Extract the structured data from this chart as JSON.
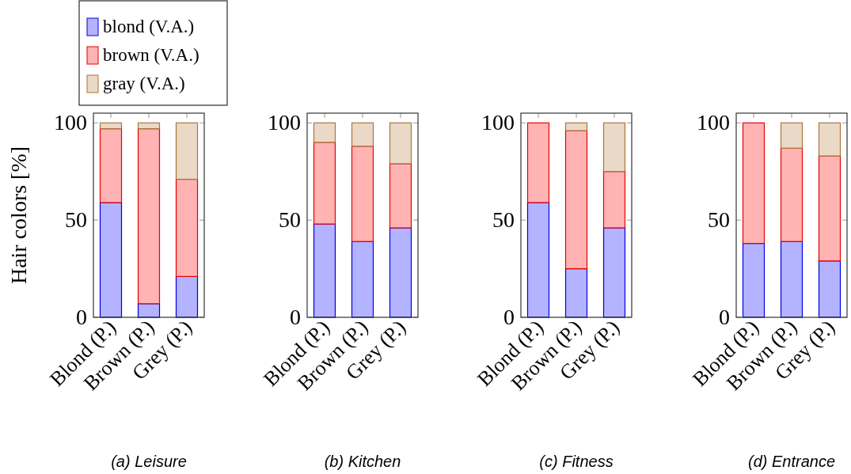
{
  "chart_data": [
    {
      "type": "bar",
      "stacked": true,
      "title": "(a) Leisure",
      "ylabel": "Hair colors [%]",
      "legend": "top left",
      "categories": [
        "Blond (P.)",
        "Brown (P.)",
        "Grey (P.)"
      ],
      "ylim": [
        0,
        105
      ],
      "yticks": [
        0,
        50,
        100
      ],
      "series": [
        {
          "name": "blond (V.A.)",
          "color": "#b3b3ff",
          "values": [
            59,
            7,
            21
          ]
        },
        {
          "name": "brown (V.A.)",
          "color": "#ffb3b3",
          "values": [
            38,
            90,
            50
          ]
        },
        {
          "name": "gray (V.A.)",
          "color": "#ead9c6",
          "values": [
            3,
            3,
            29
          ]
        }
      ]
    },
    {
      "type": "bar",
      "stacked": true,
      "title": "(b) Kitchen",
      "categories": [
        "Blond (P.)",
        "Brown (P.)",
        "Grey (P.)"
      ],
      "ylim": [
        0,
        105
      ],
      "yticks": [
        0,
        50,
        100
      ],
      "series": [
        {
          "color": "#b3b3ff",
          "values": [
            48,
            39,
            46
          ]
        },
        {
          "color": "#ffb3b3",
          "values": [
            42,
            49,
            33
          ]
        },
        {
          "color": "#ead9c6",
          "values": [
            10,
            12,
            21
          ]
        }
      ]
    },
    {
      "type": "bar",
      "stacked": true,
      "title": "(c) Fitness",
      "categories": [
        "Blond (P.)",
        "Brown (P.)",
        "Grey (P.)"
      ],
      "ylim": [
        0,
        105
      ],
      "yticks": [
        0,
        50,
        100
      ],
      "series": [
        {
          "color": "#b3b3ff",
          "values": [
            59,
            25,
            46
          ]
        },
        {
          "color": "#ffb3b3",
          "values": [
            41,
            71,
            29
          ]
        },
        {
          "color": "#ead9c6",
          "values": [
            0,
            4,
            25
          ]
        }
      ]
    },
    {
      "type": "bar",
      "stacked": true,
      "title": "(d) Entrance",
      "categories": [
        "Blond (P.)",
        "Brown (P.)",
        "Grey (P.)"
      ],
      "ylim": [
        0,
        105
      ],
      "yticks": [
        0,
        50,
        100
      ],
      "series": [
        {
          "color": "#b3b3ff",
          "values": [
            38,
            39,
            29
          ]
        },
        {
          "color": "#ffb3b3",
          "values": [
            62,
            48,
            54
          ]
        },
        {
          "color": "#ead9c6",
          "values": [
            0,
            13,
            17
          ]
        }
      ]
    }
  ]
}
